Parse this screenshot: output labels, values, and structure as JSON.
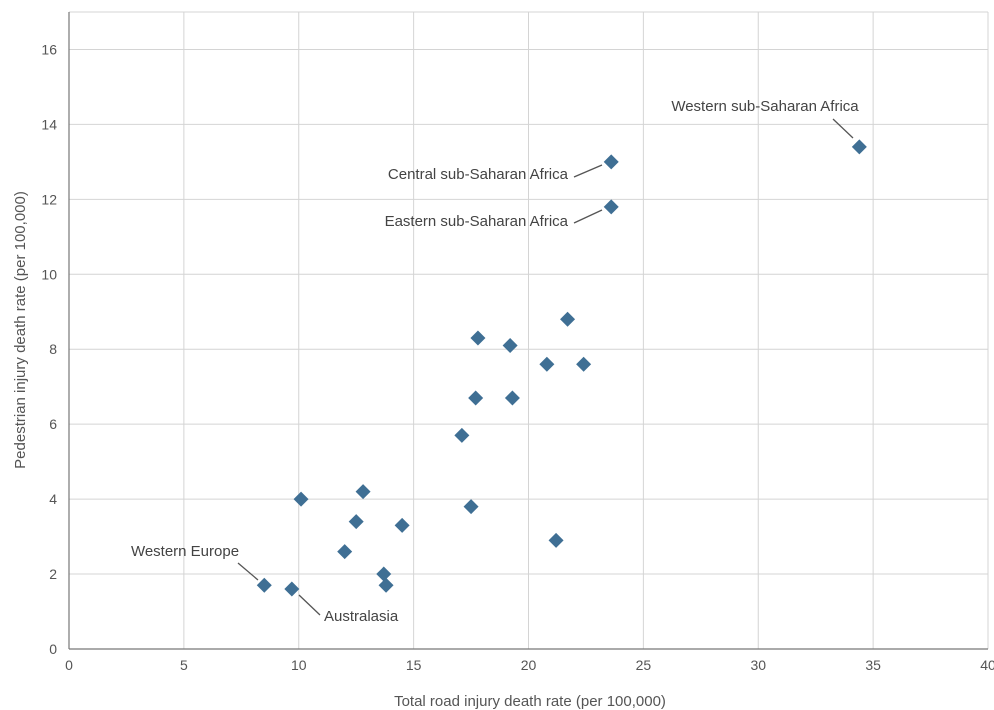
{
  "chart_data": {
    "type": "scatter",
    "title": "",
    "xlabel": "Total road injury death rate (per 100,000)",
    "ylabel": "Pedestrian injury death rate (per 100,000)",
    "xlim": [
      0,
      40
    ],
    "ylim": [
      0,
      17
    ],
    "xticks": [
      "0",
      "5",
      "10",
      "15",
      "20",
      "25",
      "30",
      "35",
      "40"
    ],
    "yticks": [
      "0",
      "2",
      "4",
      "6",
      "8",
      "10",
      "12",
      "14",
      "16"
    ],
    "grid": true,
    "marker": "diamond",
    "color": "#3f6f94",
    "points": [
      {
        "x": 8.5,
        "y": 1.7,
        "label": "Western Europe"
      },
      {
        "x": 9.7,
        "y": 1.6,
        "label": "Australasia"
      },
      {
        "x": 10.1,
        "y": 4.0
      },
      {
        "x": 12.0,
        "y": 2.6
      },
      {
        "x": 12.5,
        "y": 3.4
      },
      {
        "x": 12.8,
        "y": 4.2
      },
      {
        "x": 13.7,
        "y": 2.0
      },
      {
        "x": 13.8,
        "y": 1.7
      },
      {
        "x": 14.5,
        "y": 3.3
      },
      {
        "x": 17.1,
        "y": 5.7
      },
      {
        "x": 17.5,
        "y": 3.8
      },
      {
        "x": 17.7,
        "y": 6.7
      },
      {
        "x": 17.8,
        "y": 8.3
      },
      {
        "x": 19.2,
        "y": 8.1
      },
      {
        "x": 19.3,
        "y": 6.7
      },
      {
        "x": 20.8,
        "y": 7.6
      },
      {
        "x": 21.2,
        "y": 2.9
      },
      {
        "x": 21.7,
        "y": 8.8
      },
      {
        "x": 22.4,
        "y": 7.6
      },
      {
        "x": 23.6,
        "y": 13.0,
        "label": "Central sub-Saharan Africa"
      },
      {
        "x": 23.6,
        "y": 11.8,
        "label": "Eastern sub-Saharan Africa"
      },
      {
        "x": 34.4,
        "y": 13.4,
        "label": "Western sub-Saharan Africa"
      }
    ]
  }
}
